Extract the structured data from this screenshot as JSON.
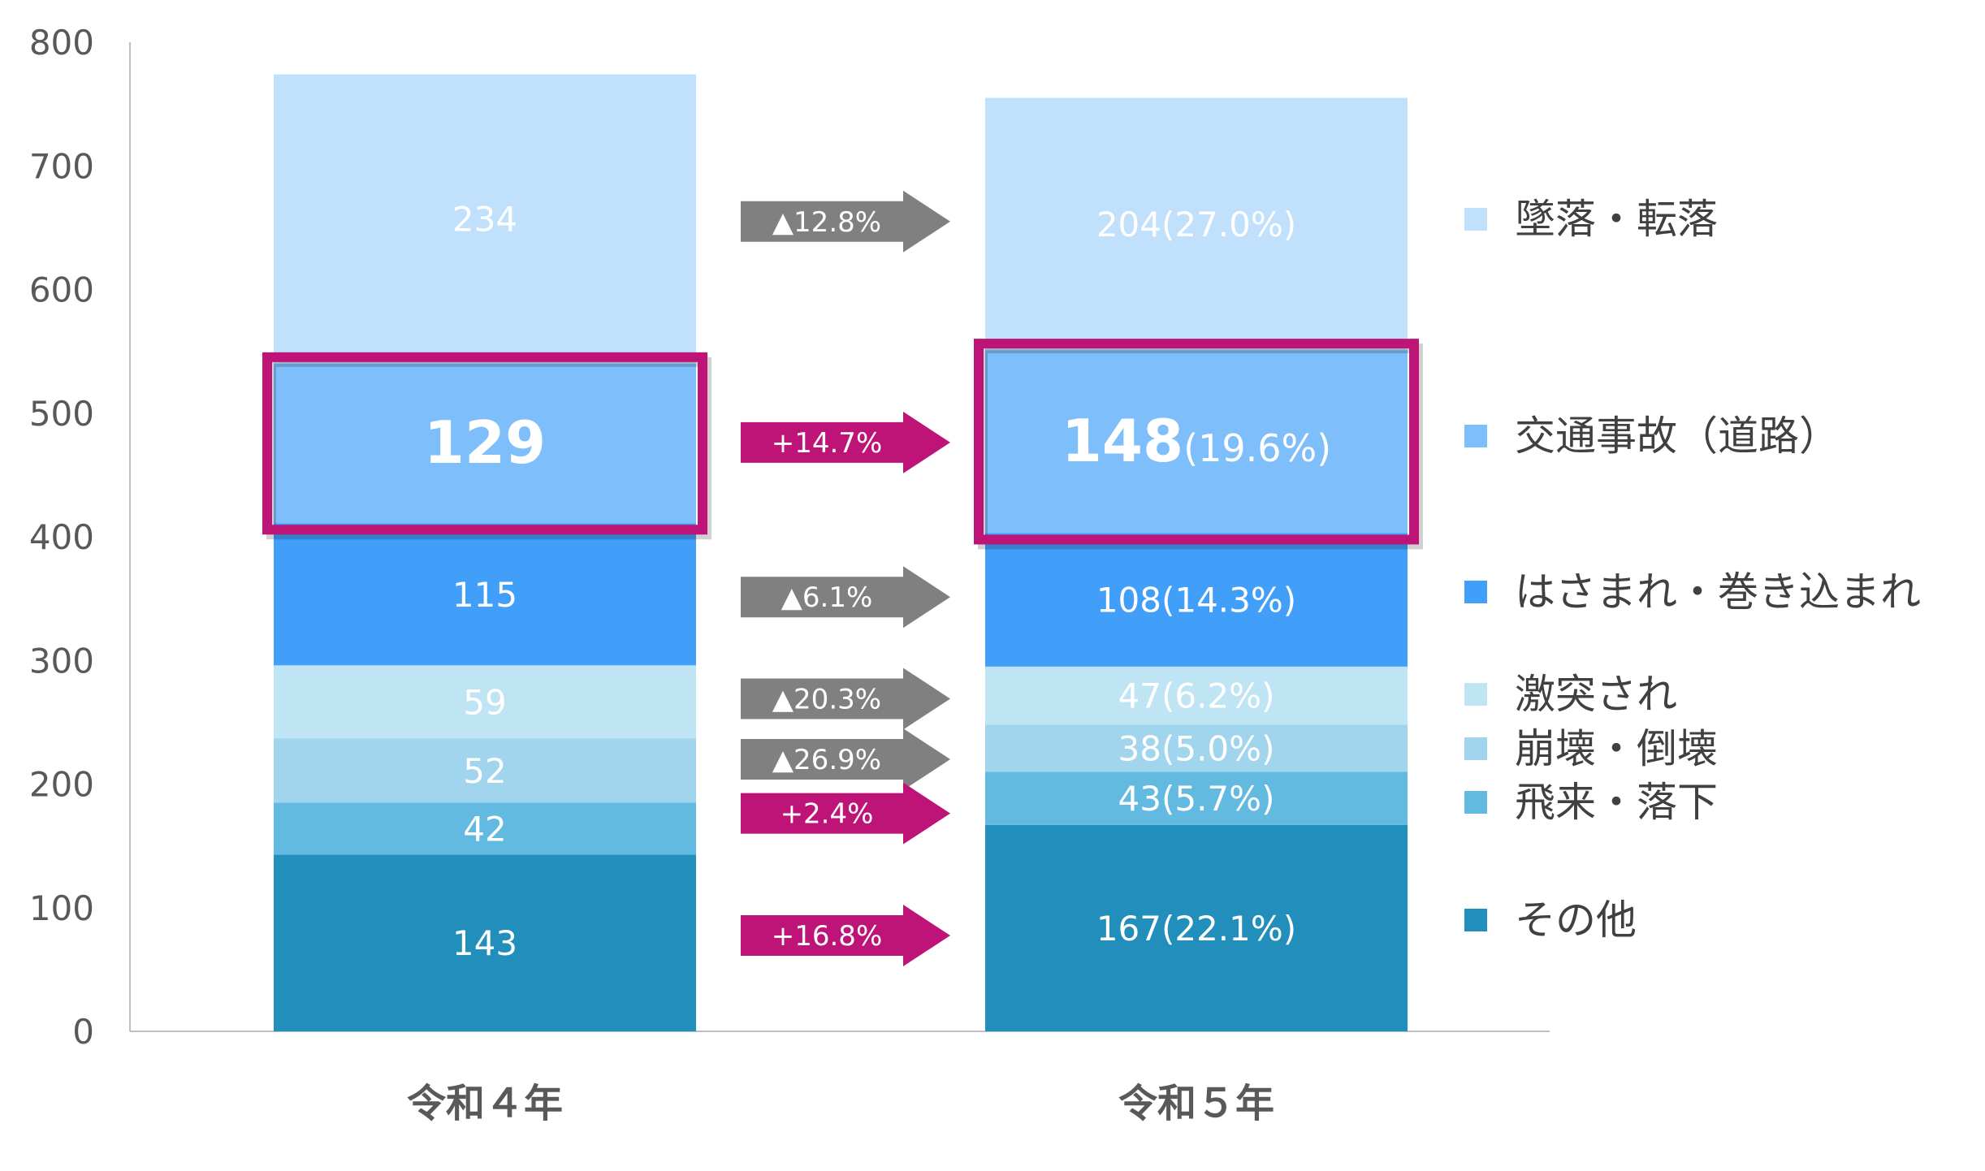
{
  "chart_data": {
    "type": "bar",
    "stacked": true,
    "categories": [
      "令和４年",
      "令和５年"
    ],
    "ylim": [
      0,
      800
    ],
    "yticks": [
      0,
      100,
      200,
      300,
      400,
      500,
      600,
      700,
      800
    ],
    "series": [
      {
        "name": "その他",
        "values": [
          143,
          167
        ],
        "labels": [
          "143",
          "167(22.1%)"
        ],
        "color": "#218EBC",
        "label_color": "#ffffff"
      },
      {
        "name": "飛来・落下",
        "values": [
          42,
          43
        ],
        "labels": [
          "42",
          "43(5.7%)"
        ],
        "color": "#63BAE0",
        "label_color": "#ffffff"
      },
      {
        "name": "崩壊・倒壊",
        "values": [
          52,
          38
        ],
        "labels": [
          "52",
          "38(5.0%)"
        ],
        "color": "#A1D5EE",
        "label_color": "#ffffff"
      },
      {
        "name": "激突され",
        "values": [
          59,
          47
        ],
        "labels": [
          "59",
          "47(6.2%)"
        ],
        "color": "#BFE4F4",
        "label_color": "#ffffff"
      },
      {
        "name": "はさまれ・巻き込まれ",
        "values": [
          115,
          108
        ],
        "labels": [
          "115",
          "108(14.3%)"
        ],
        "color": "#419FF9",
        "label_color": "#ffffff"
      },
      {
        "name": "交通事故（道路）",
        "values": [
          129,
          148
        ],
        "labels": [
          "129",
          "148"
        ],
        "label_suffix": [
          "",
          "(19.6%)"
        ],
        "color": "#7EBEFB",
        "label_color": "#ffffff",
        "highlight": true
      },
      {
        "name": "墜落・転落",
        "values": [
          234,
          204
        ],
        "labels": [
          "234",
          "204(27.0%)"
        ],
        "color": "#C0E0FC",
        "label_color": "#ffffff"
      }
    ],
    "changes": [
      {
        "series": "墜落・転落",
        "text": "▲12.8%",
        "color": "#808080"
      },
      {
        "series": "交通事故（道路）",
        "text": "+14.7%",
        "color": "#BE1478"
      },
      {
        "series": "はさまれ・巻き込まれ",
        "text": "▲6.1%",
        "color": "#808080"
      },
      {
        "series": "激突され",
        "text": "▲20.3%",
        "color": "#808080"
      },
      {
        "series": "崩壊・倒壊",
        "text": "▲26.9%",
        "color": "#808080"
      },
      {
        "series": "飛来・落下",
        "text": "+2.4%",
        "color": "#BE1478"
      },
      {
        "series": "その他",
        "text": "+16.8%",
        "color": "#BE1478"
      }
    ],
    "highlight_color": "#BE1478",
    "grid": false,
    "legend_position": "right"
  }
}
